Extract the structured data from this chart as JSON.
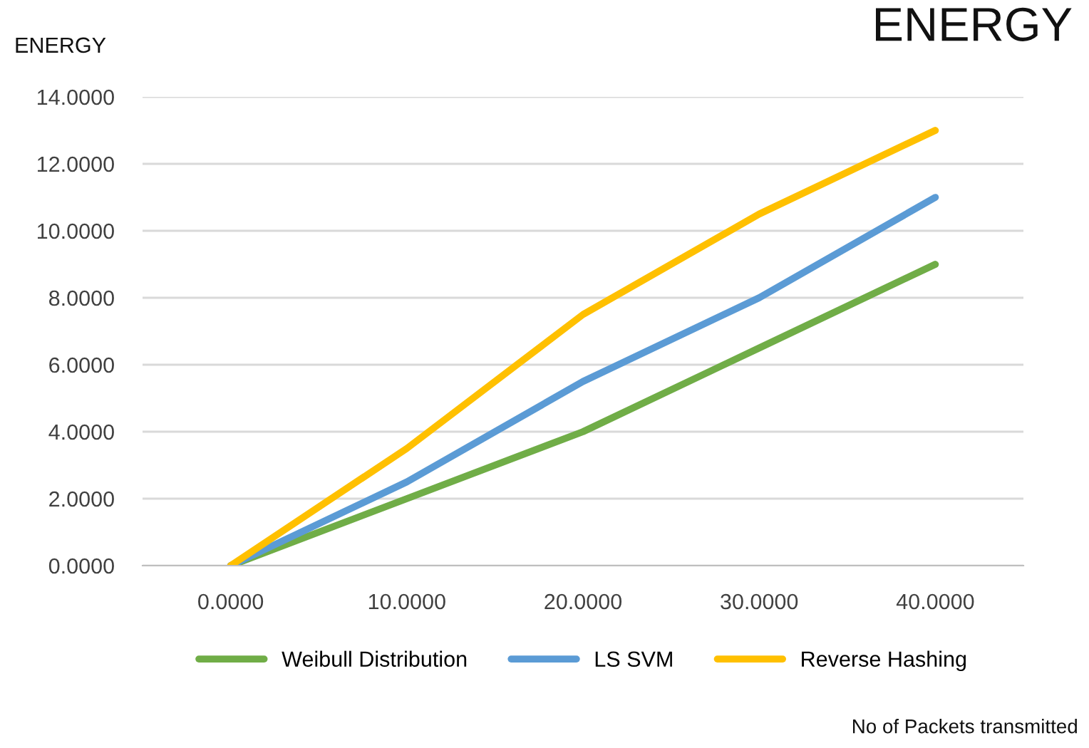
{
  "chart_data": {
    "type": "line",
    "title": "ENERGY",
    "ylabel": "ENERGY",
    "annotations": [
      "No of Packets transmitted"
    ],
    "categories": [
      "0.0000",
      "10.0000",
      "20.0000",
      "30.0000",
      "40.0000"
    ],
    "series": [
      {
        "name": "Weibull Distribution",
        "color": "#70ad47",
        "values": [
          0,
          2,
          4,
          6.5,
          9
        ]
      },
      {
        "name": "LS SVM",
        "color": "#5b9bd5",
        "values": [
          0,
          2.5,
          5.5,
          8,
          11
        ]
      },
      {
        "name": "Reverse Hashing",
        "color": "#ffc000",
        "values": [
          0,
          3.5,
          7.5,
          10.5,
          13
        ]
      }
    ],
    "ylim": [
      0,
      14
    ],
    "yticks": [
      {
        "value": 0,
        "label": "0.0000"
      },
      {
        "value": 2,
        "label": "2.0000"
      },
      {
        "value": 4,
        "label": "4.0000"
      },
      {
        "value": 6,
        "label": "6.0000"
      },
      {
        "value": 8,
        "label": "8.0000"
      },
      {
        "value": 10,
        "label": "10.0000"
      },
      {
        "value": 12,
        "label": "12.0000"
      },
      {
        "value": 14,
        "label": "14.0000"
      }
    ],
    "grid": "y",
    "legend": "bottom",
    "marker": "none",
    "line_style": "solid"
  }
}
